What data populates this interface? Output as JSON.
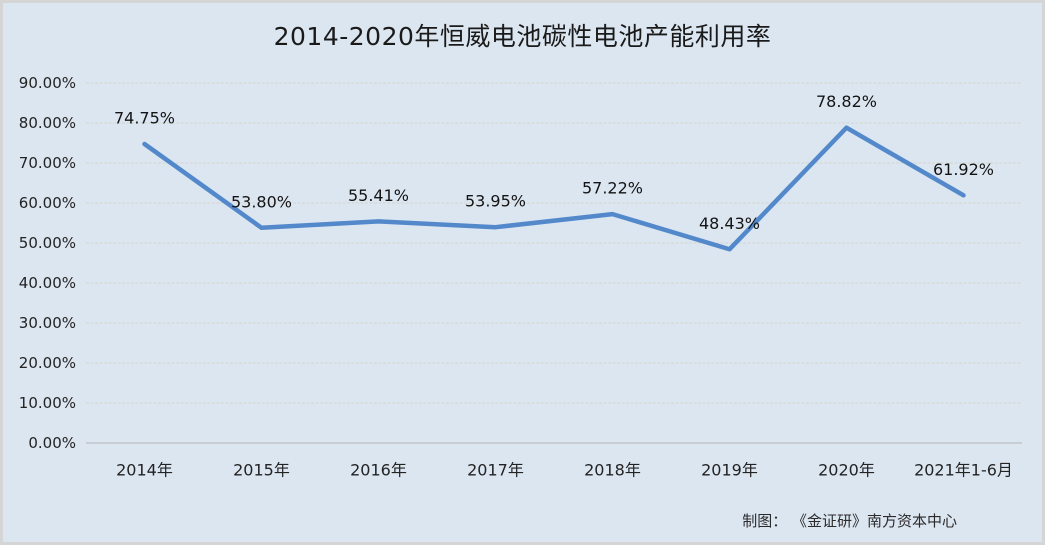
{
  "chart_data": {
    "type": "line",
    "title": "2014-2020年恒威电池碳性电池产能利用率",
    "categories": [
      "2014年",
      "2015年",
      "2016年",
      "2017年",
      "2018年",
      "2019年",
      "2020年",
      "2021年1-6月"
    ],
    "values": [
      74.75,
      53.8,
      55.41,
      53.95,
      57.22,
      48.43,
      78.82,
      61.92
    ],
    "data_labels": [
      "74.75%",
      "53.80%",
      "55.41%",
      "53.95%",
      "57.22%",
      "48.43%",
      "78.82%",
      "61.92%"
    ],
    "y_ticks": [
      "0.00%",
      "10.00%",
      "20.00%",
      "30.00%",
      "40.00%",
      "50.00%",
      "60.00%",
      "70.00%",
      "80.00%",
      "90.00%"
    ],
    "ylim": [
      0,
      90
    ],
    "grid": true,
    "legend_position": "none",
    "source_note": "制图： 《金证研》南方资本中心",
    "colors": {
      "background": "#dce6f1",
      "frame_border": "#d5d5d5",
      "line": "#5389cb",
      "gridline": "#d4d4cf",
      "axis_line": "#c9ced4",
      "text": "#1a1a1a"
    }
  }
}
